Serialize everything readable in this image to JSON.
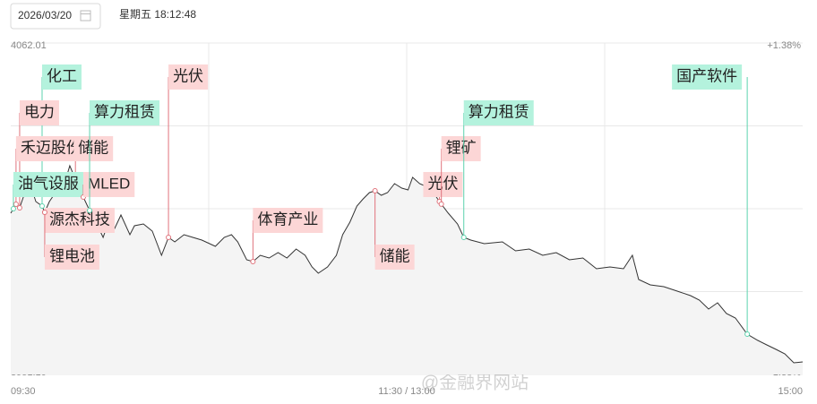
{
  "header": {
    "date": "2026/03/20",
    "weekday_time": "星期五 18:12:48"
  },
  "watermark": "@金融界网站",
  "chart_data": {
    "type": "line",
    "x": [
      0,
      1.6,
      2.7,
      4.3,
      6.3,
      7.6,
      9.5,
      10.3,
      11.7,
      13,
      14.9,
      16.3,
      17.9,
      19.6,
      20.7,
      22,
      23.9,
      26.1,
      28,
      29.4,
      31.5,
      33.4,
      36.1,
      37.5,
      40.2,
      42.9,
      45.7,
      47.8,
      49.7,
      52.5,
      55.2,
      57.9,
      62,
      64.7,
      66.9,
      68.8,
      71.5,
      73.4,
      75.6,
      78.3,
      81,
      83.7,
      86.5,
      89.2,
      91.3,
      93.2,
      96,
      98.7,
      100.6,
      102.8,
      104.9,
      106.8,
      108.7,
      110.4,
      112.3,
      114.2,
      116.3,
      118.5,
      120.4,
      121.8,
      123.9,
      125.8,
      127.2,
      129.9,
      132.6,
      135.4,
      137.3,
      139.4,
      143.5,
      149,
      153,
      157.1,
      161.2,
      165.3,
      169.3,
      173.4,
      177.5,
      181.6,
      185.7,
      188.4,
      190.3,
      193.8,
      197.9,
      202,
      206,
      208.7,
      211.5,
      214.2,
      216.9,
      219.6,
      223.2,
      226.4,
      229.1,
      231.9,
      234.6,
      237.3,
      240
    ],
    "values": [
      4005.06,
      4008.05,
      4006.85,
      4011.95,
      4013.45,
      4008.95,
      4007.45,
      4005.36,
      4008.95,
      4011.05,
      4011.95,
      4014.95,
      4020.94,
      4016.45,
      4012.85,
      4010.45,
      4005.95,
      4001.46,
      3996.96,
      4001.46,
      3999.96,
      4004.46,
      3997.86,
      4000.86,
      4001.46,
      3999.06,
      3990.97,
      3996.96,
      3995.46,
      3997.86,
      3996.96,
      3996.06,
      3993.96,
      3996.96,
      3997.86,
      3995.46,
      3989.47,
      3988.87,
      3990.97,
      3990.07,
      3991.87,
      3990.07,
      3993.07,
      3990.97,
      3987.07,
      3984.97,
      3987.07,
      3990.97,
      3997.86,
      4002.06,
      4007.45,
      4009.85,
      4011.95,
      4012.55,
      4011.05,
      4011.95,
      4014.95,
      4013.45,
      4012.85,
      4017.05,
      4014.95,
      4014.05,
      4013.45,
      4008.95,
      4005.06,
      4001.46,
      3996.96,
      3996.06,
      3994.86,
      3995.46,
      3992.47,
      3993.07,
      3990.97,
      3991.87,
      3989.47,
      3990.07,
      3986.47,
      3987.07,
      3986.47,
      3990.97,
      3982.87,
      3981.07,
      3980.48,
      3978.98,
      3977.48,
      3975.98,
      3972.98,
      3975.08,
      3971.48,
      3969.98,
      3964.59,
      3962.49,
      3960.99,
      3959.49,
      3957.99,
      3955.0,
      3955.3
    ],
    "color": "#333333",
    "xlim": [
      0,
      240
    ],
    "xticks": [
      {
        "value": 0,
        "label": "09:30"
      },
      {
        "value": 120,
        "label": "11:30 / 13:00"
      },
      {
        "value": 240,
        "label": "15:00"
      }
    ],
    "ylim": [
      3951.1,
      4062.01
    ],
    "yticks": [
      4062.01,
      {
        "value": 3951.1,
        "label": "3951.10"
      }
    ],
    "y2lim": [
      -1.38,
      1.38
    ],
    "y2ticks": [
      {
        "value": 1.38,
        "label": "+1.38%"
      },
      {
        "value": -1.38,
        "label": "-1.38%"
      }
    ],
    "grid": true,
    "annotations": [
      {
        "text": "化工",
        "x": 9.5,
        "color": "#b4f2dd"
      },
      {
        "text": "电力",
        "x": 2.7,
        "color": "#fcd6d6"
      },
      {
        "text": "禾迈股份",
        "x": 1.6,
        "color": "#fcd6d6"
      },
      {
        "text": "储能",
        "x": 19.6,
        "color": "#fcd6d6"
      },
      {
        "text": "油气设服",
        "x": 0.8,
        "color": "#b4f2dd"
      },
      {
        "text": "MLED",
        "x": 22,
        "color": "#fcd6d6"
      },
      {
        "text": "源杰科技",
        "x": 10.3,
        "color": "#fcd6d6"
      },
      {
        "text": "锂电池",
        "x": 10.3,
        "color": "#fcd6d6"
      },
      {
        "text": "算力租赁",
        "x": 23.9,
        "color": "#b4f2dd"
      },
      {
        "text": "光伏",
        "x": 47.8,
        "color": "#fcd6d6"
      },
      {
        "text": "体育产业",
        "x": 73.4,
        "color": "#fcd6d6"
      },
      {
        "text": "储能",
        "x": 110.4,
        "color": "#fcd6d6"
      },
      {
        "text": "光伏",
        "x": 129.9,
        "color": "#fcd6d6"
      },
      {
        "text": "锂矿",
        "x": 130.5,
        "color": "#fcd6d6"
      },
      {
        "text": "算力租赁",
        "x": 137.3,
        "color": "#b4f2dd"
      },
      {
        "text": "国产软件",
        "x": 223.2,
        "color": "#b4f2dd"
      }
    ]
  }
}
